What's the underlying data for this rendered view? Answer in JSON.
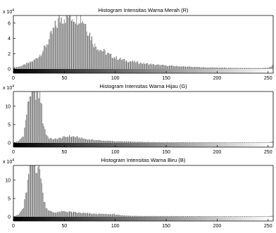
{
  "chart_data": [
    {
      "type": "bar",
      "title": "Histogram Intensitas Warna Merah (R)",
      "y_scale_label": "x 10",
      "y_scale_exponent": "4",
      "xlim": [
        0,
        255
      ],
      "ylim": [
        0,
        7
      ],
      "x_ticks": [
        0,
        50,
        100,
        150,
        200,
        250
      ],
      "y_ticks": [
        0,
        2,
        4,
        6
      ],
      "grid": false,
      "colorbar_gradient": [
        "#000000",
        "#ffffff"
      ],
      "peak_value": 7.0,
      "profile": [
        [
          0,
          0.2
        ],
        [
          5,
          0.3
        ],
        [
          10,
          0.5
        ],
        [
          15,
          0.8
        ],
        [
          20,
          1.1
        ],
        [
          25,
          1.7
        ],
        [
          30,
          2.6
        ],
        [
          35,
          3.8
        ],
        [
          40,
          5.2
        ],
        [
          45,
          6.5
        ],
        [
          50,
          7.0
        ],
        [
          55,
          7.0
        ],
        [
          60,
          7.0
        ],
        [
          65,
          7.0
        ],
        [
          70,
          6.2
        ],
        [
          75,
          4.6
        ],
        [
          80,
          3.1
        ],
        [
          85,
          2.6
        ],
        [
          90,
          2.2
        ],
        [
          95,
          1.8
        ],
        [
          100,
          1.5
        ],
        [
          110,
          1.1
        ],
        [
          120,
          0.9
        ],
        [
          130,
          0.7
        ],
        [
          140,
          0.55
        ],
        [
          150,
          0.45
        ],
        [
          160,
          0.38
        ],
        [
          170,
          0.3
        ],
        [
          180,
          0.25
        ],
        [
          190,
          0.2
        ],
        [
          200,
          0.18
        ],
        [
          210,
          0.15
        ],
        [
          220,
          0.13
        ],
        [
          230,
          0.12
        ],
        [
          240,
          0.12
        ],
        [
          250,
          0.15
        ],
        [
          255,
          0.5
        ]
      ]
    },
    {
      "type": "bar",
      "title": "Histogram Intensitas Warna Hijau (G)",
      "y_scale_label": "x 10",
      "y_scale_exponent": "4",
      "xlim": [
        0,
        255
      ],
      "ylim": [
        0,
        14
      ],
      "x_ticks": [
        0,
        50,
        100,
        150,
        200,
        250
      ],
      "y_ticks": [
        0,
        5,
        10
      ],
      "grid": false,
      "colorbar_gradient": [
        "#000000",
        "#ffffff"
      ],
      "peak_value": 14.0,
      "profile": [
        [
          0,
          0.1
        ],
        [
          5,
          0.5
        ],
        [
          10,
          2.0
        ],
        [
          13,
          8.0
        ],
        [
          15,
          12.0
        ],
        [
          17,
          14.0
        ],
        [
          20,
          14.0
        ],
        [
          24,
          14.0
        ],
        [
          27,
          12.5
        ],
        [
          29,
          6.0
        ],
        [
          32,
          2.5
        ],
        [
          35,
          1.3
        ],
        [
          40,
          1.0
        ],
        [
          45,
          1.3
        ],
        [
          50,
          1.6
        ],
        [
          55,
          1.8
        ],
        [
          60,
          1.7
        ],
        [
          65,
          1.4
        ],
        [
          70,
          1.1
        ],
        [
          80,
          0.8
        ],
        [
          90,
          0.6
        ],
        [
          100,
          0.45
        ],
        [
          120,
          0.3
        ],
        [
          150,
          0.2
        ],
        [
          200,
          0.15
        ],
        [
          250,
          0.15
        ],
        [
          255,
          0.4
        ]
      ]
    },
    {
      "type": "bar",
      "title": "Histogram Intensitas Warna Biru (B)",
      "y_scale_label": "x 10",
      "y_scale_exponent": "4",
      "xlim": [
        0,
        255
      ],
      "ylim": [
        0,
        14
      ],
      "x_ticks": [
        0,
        50,
        100,
        150,
        200,
        250
      ],
      "y_ticks": [
        0,
        5,
        10
      ],
      "grid": false,
      "colorbar_gradient": [
        "#000000",
        "#ffffff"
      ],
      "peak_value": 14.0,
      "profile": [
        [
          0,
          0.1
        ],
        [
          5,
          0.6
        ],
        [
          10,
          2.5
        ],
        [
          13,
          7.5
        ],
        [
          15,
          11.0
        ],
        [
          17,
          14.0
        ],
        [
          20,
          14.0
        ],
        [
          24,
          14.0
        ],
        [
          27,
          12.0
        ],
        [
          29,
          6.0
        ],
        [
          32,
          2.8
        ],
        [
          35,
          1.6
        ],
        [
          40,
          1.2
        ],
        [
          45,
          1.3
        ],
        [
          50,
          1.5
        ],
        [
          55,
          1.4
        ],
        [
          60,
          1.2
        ],
        [
          70,
          1.0
        ],
        [
          80,
          0.8
        ],
        [
          90,
          0.75
        ],
        [
          100,
          0.7
        ],
        [
          105,
          0.4
        ],
        [
          120,
          0.25
        ],
        [
          150,
          0.2
        ],
        [
          200,
          0.15
        ],
        [
          250,
          0.15
        ],
        [
          255,
          0.3
        ]
      ]
    }
  ]
}
